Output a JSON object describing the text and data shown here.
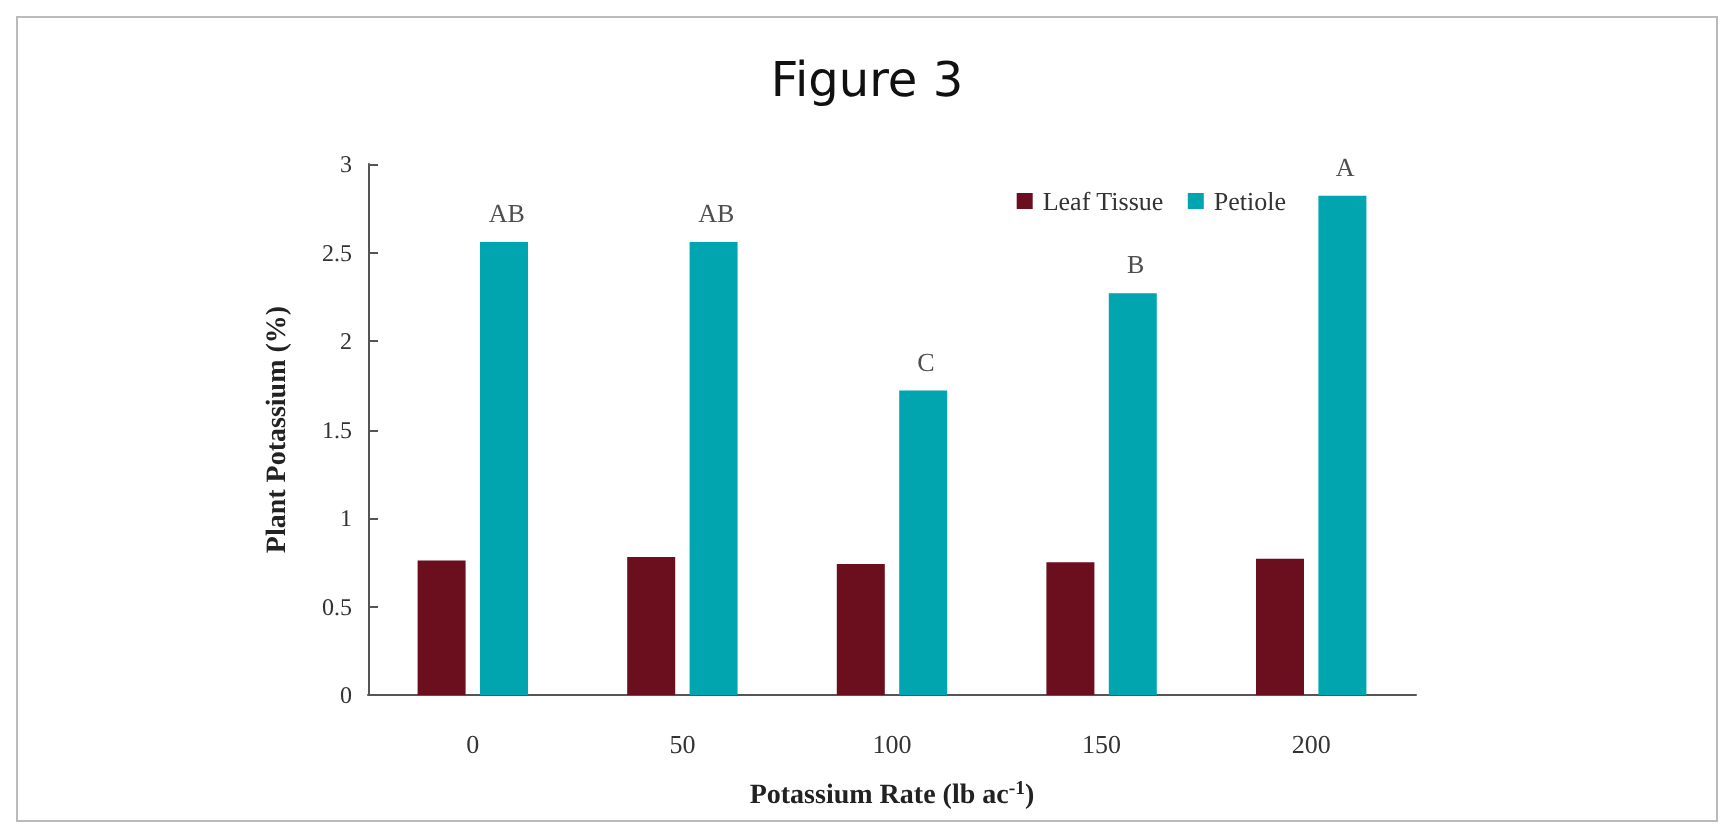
{
  "chart_data": {
    "type": "bar",
    "title": "Figure 3",
    "xlabel": "Potassium Rate (lb ac$^{-1}$)",
    "ylabel": "Plant Potassium (%)",
    "categories": [
      "0",
      "50",
      "100",
      "150",
      "200"
    ],
    "series": [
      {
        "name": "Leaf Tissue",
        "color": "#6b0f1f",
        "values": [
          0.76,
          0.78,
          0.74,
          0.75,
          0.77
        ]
      },
      {
        "name": "Petiole",
        "color": "#00a5b0",
        "values": [
          2.56,
          2.56,
          1.72,
          2.27,
          2.82
        ]
      }
    ],
    "ylim": [
      0,
      3
    ],
    "yticks": [
      0,
      0.5,
      1,
      1.5,
      2,
      2.5,
      3
    ],
    "grid": false,
    "legend": "top right",
    "annotations": [
      {
        "text": "AB",
        "x": "0",
        "y": 2.56
      },
      {
        "text": "AB",
        "x": "50",
        "y": 2.56
      },
      {
        "text": "C",
        "x": "100",
        "y": 1.72
      },
      {
        "text": "B",
        "x": "150",
        "y": 2.27
      },
      {
        "text": "A",
        "x": "200",
        "y": 2.82
      }
    ]
  }
}
